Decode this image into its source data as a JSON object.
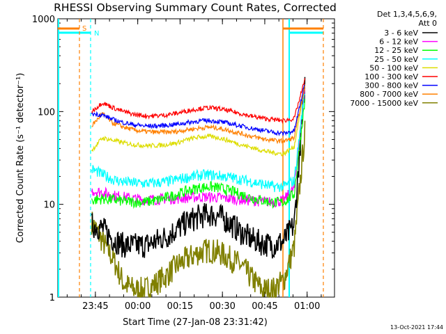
{
  "chart_data": {
    "type": "line",
    "title": "RHESSI Observing Summary Count Rates, Corrected",
    "xlabel": "Start Time (27-Jan-08 23:31:42)",
    "ylabel": "Corrected Count Rate (s⁻¹ detector⁻¹)",
    "yscale": "log",
    "ylim": [
      1,
      1000
    ],
    "xlim_minutes_after_start": [
      0,
      98
    ],
    "x_tick_labels": [
      "23:45",
      "00:00",
      "00:15",
      "00:30",
      "00:45",
      "01:00"
    ],
    "x_tick_minutes_after_start": [
      13.3,
      28.3,
      43.3,
      58.3,
      73.3,
      88.3
    ],
    "y_tick_labels": [
      "1",
      "10",
      "100",
      "1000"
    ],
    "y_tick_values": [
      1,
      10,
      100,
      1000
    ],
    "legend_header": [
      "Det 1,3,4,5,6,9,",
      "Att 0"
    ],
    "legend_position": "top-right, outside plot",
    "timestamp": "13-Oct-2021 17:44",
    "markers": [
      {
        "label": "S",
        "color": "#ff8000"
      },
      {
        "label": "N",
        "color": "#00ffff"
      }
    ],
    "series": [
      {
        "name": "3 - 6 keV",
        "color": "#000000",
        "values": [
          6,
          5.5,
          4.2,
          3.6,
          3.6,
          3.6,
          4.0,
          4.5,
          5.4,
          6.5,
          7.3,
          7.8,
          7.5,
          6.2,
          5.0,
          4.2,
          3.8,
          3.6,
          4.0,
          6,
          200
        ]
      },
      {
        "name": "6 - 12 keV",
        "color": "#ff00ff",
        "values": [
          14,
          13.5,
          12.5,
          12.0,
          11.5,
          11.2,
          11.3,
          11.5,
          11.5,
          11.8,
          12.0,
          12.0,
          11.8,
          11.5,
          11.2,
          11.0,
          10.8,
          10.5,
          11,
          15,
          180
        ]
      },
      {
        "name": "12 - 25 keV",
        "color": "#00ff00",
        "values": [
          11,
          11.5,
          11.2,
          10.8,
          10.6,
          10.6,
          11.0,
          11.8,
          12.8,
          14,
          15,
          15.5,
          15,
          14,
          12.8,
          11.8,
          11,
          10.5,
          10.5,
          13,
          130
        ]
      },
      {
        "name": "25 - 50 keV",
        "color": "#00ffff",
        "values": [
          24,
          21,
          18.5,
          17.5,
          17.0,
          16.8,
          17.0,
          17.5,
          18.5,
          19.5,
          20.5,
          20.8,
          20.3,
          19.5,
          18.5,
          17.5,
          16.5,
          15.5,
          15.5,
          18,
          170
        ]
      },
      {
        "name": "50 - 100 keV",
        "color": "#dddd00",
        "values": [
          38,
          52,
          49,
          46,
          44,
          43,
          43,
          44,
          46,
          50,
          53,
          54,
          52,
          48,
          44,
          41,
          38,
          36,
          35,
          42,
          190
        ]
      },
      {
        "name": "100 - 300 keV",
        "color": "#ff0000",
        "values": [
          100,
          125,
          110,
          100,
          93,
          90,
          90,
          92,
          96,
          102,
          107,
          110,
          107,
          101,
          95,
          89,
          85,
          82,
          80,
          84,
          220
        ]
      },
      {
        "name": "300 - 800 keV",
        "color": "#0000ff",
        "values": [
          95,
          92,
          82,
          76,
          72,
          70,
          70,
          71,
          73,
          76,
          79,
          80,
          78,
          74,
          70,
          66,
          63,
          60,
          58,
          62,
          200
        ]
      },
      {
        "name": "800 - 7000 keV",
        "color": "#ff8000",
        "values": [
          70,
          95,
          75,
          68,
          63,
          61,
          60,
          60,
          61,
          64,
          66,
          68,
          66,
          62,
          58,
          54,
          51,
          49,
          48,
          52,
          190
        ]
      },
      {
        "name": "7000 - 15000 keV",
        "color": "#808000",
        "values": [
          6.5,
          4.0,
          2.6,
          1.4,
          1.2,
          1.2,
          1.4,
          1.7,
          2.2,
          2.6,
          3.0,
          3.2,
          3.0,
          2.6,
          2.2,
          1.6,
          1.2,
          1.2,
          1.5,
          3.5,
          60
        ]
      }
    ]
  }
}
